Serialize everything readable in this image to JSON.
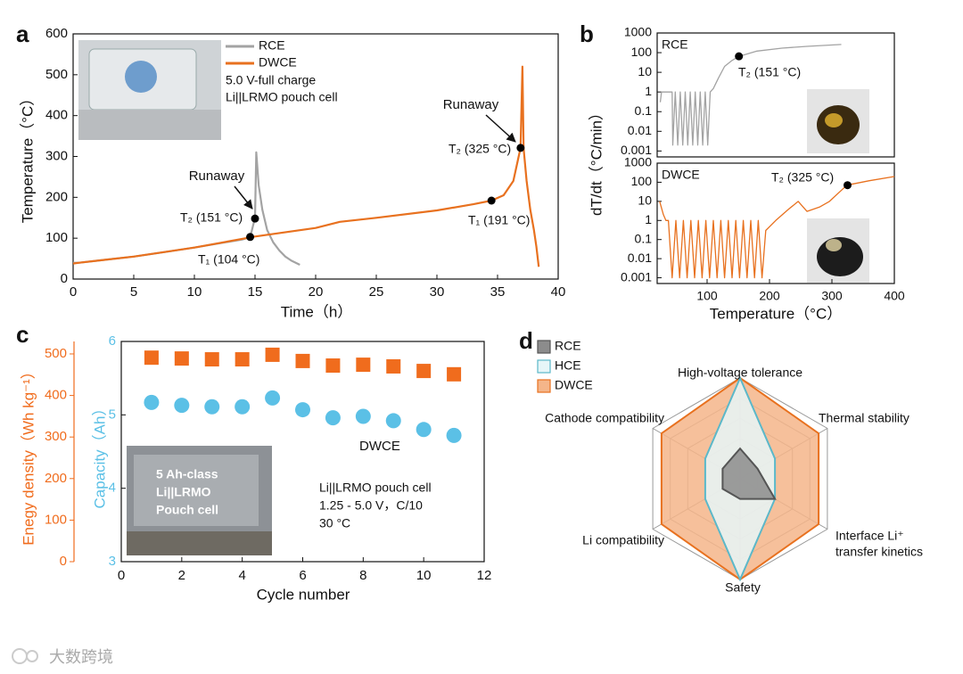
{
  "chart_data": [
    {
      "type": "line",
      "panel": "a",
      "xlabel": "Time（h）",
      "ylabel": "Temperature（°C）",
      "xlim": [
        0,
        40
      ],
      "ylim": [
        0,
        600
      ],
      "xticks": [
        0,
        5,
        10,
        15,
        20,
        25,
        30,
        35,
        40
      ],
      "yticks": [
        0,
        100,
        200,
        300,
        400,
        500,
        600
      ],
      "legend": true,
      "legend_notes": [
        "5.0 V-full charge",
        "Li||LRMO pouch cell"
      ],
      "series": [
        {
          "name": "RCE",
          "color": "#a3a3a3",
          "x": [
            0,
            0.5,
            2,
            5,
            8,
            10,
            12,
            14,
            14.6,
            15.0,
            15.1,
            15.3,
            15.6,
            16,
            16.5,
            17,
            17.5,
            18,
            18.7
          ],
          "values": [
            40,
            40,
            45,
            55,
            68,
            77,
            87,
            97,
            103,
            150,
            310,
            230,
            170,
            120,
            90,
            70,
            55,
            45,
            35
          ]
        },
        {
          "name": "DWCE",
          "color": "#e8711f",
          "x": [
            0,
            0.5,
            2,
            5,
            10,
            15,
            20,
            22,
            25,
            30,
            33,
            34.5,
            35.5,
            36.3,
            36.9,
            37.05,
            37.15,
            37.4,
            37.7,
            38.0,
            38.2,
            38.4
          ],
          "values": [
            38,
            40,
            45,
            55,
            77,
            104,
            125,
            140,
            150,
            168,
            183,
            192,
            205,
            240,
            321,
            520,
            320,
            240,
            170,
            120,
            80,
            30
          ]
        }
      ],
      "points": [
        {
          "x": 14.6,
          "y": 103,
          "label": "T₁ (104 °C)"
        },
        {
          "x": 15.0,
          "y": 148,
          "label": "T₂ (151 °C)"
        },
        {
          "x": 34.5,
          "y": 192,
          "label": "T₁ (191 °C)"
        },
        {
          "x": 36.9,
          "y": 321,
          "label": "T₂ (325 °C)"
        }
      ],
      "annotations": [
        "Runaway",
        "Runaway"
      ]
    },
    {
      "type": "line",
      "panel": "b",
      "ylabel": "dT/dt（°C/min）",
      "log_y": true,
      "xlim": [
        20,
        400
      ],
      "ylim": [
        0.0005,
        1000
      ],
      "yticks": [
        0.001,
        0.01,
        0.1,
        1,
        10,
        100,
        1000
      ],
      "series": [
        {
          "name": "RCE",
          "color": "#a3a3a3",
          "x": [
            25,
            27,
            30,
            40,
            44,
            45,
            49,
            53,
            57,
            61,
            65,
            69,
            73,
            77,
            81,
            85,
            89,
            93,
            97,
            101,
            105,
            110,
            118,
            128,
            140,
            151,
            180,
            220,
            260,
            315
          ],
          "values": [
            0.3,
            1,
            1,
            1,
            1,
            0.002,
            1,
            0.002,
            1,
            0.002,
            1,
            0.002,
            1,
            0.002,
            1,
            0.002,
            1,
            0.002,
            1,
            0.002,
            1,
            1.5,
            5,
            20,
            40,
            65,
            120,
            170,
            210,
            260
          ]
        }
      ],
      "points": [
        {
          "x": 151,
          "y": 65,
          "label": "T₂ (151 °C)"
        }
      ]
    },
    {
      "type": "line",
      "xlabel": "Temperature（°C）",
      "log_y": true,
      "xlim": [
        20,
        400
      ],
      "ylim": [
        0.0005,
        1000
      ],
      "xticks": [
        100,
        200,
        300,
        400
      ],
      "yticks": [
        0.001,
        0.01,
        0.1,
        1,
        10,
        100,
        1000
      ],
      "series": [
        {
          "name": "DWCE",
          "color": "#e8711f",
          "x": [
            24,
            30,
            34,
            38,
            44,
            50,
            56,
            62,
            68,
            74,
            80,
            86,
            92,
            98,
            104,
            110,
            116,
            122,
            128,
            134,
            140,
            146,
            152,
            158,
            164,
            170,
            176,
            182,
            188,
            194,
            210,
            231,
            246,
            260,
            280,
            296,
            324,
            360,
            400
          ],
          "values": [
            10,
            2,
            1,
            1,
            0.001,
            1,
            0.001,
            1,
            0.001,
            1,
            0.001,
            1,
            0.001,
            1,
            0.001,
            1,
            0.001,
            1,
            0.001,
            1,
            0.001,
            1,
            0.001,
            1,
            0.001,
            1,
            0.001,
            1,
            0.001,
            0.3,
            1,
            4,
            10,
            3,
            5,
            10,
            70,
            120,
            200
          ]
        }
      ],
      "points": [
        {
          "x": 325,
          "y": 70,
          "label": "T₂ (325 °C)"
        }
      ]
    },
    {
      "type": "scatter",
      "panel": "c",
      "xlabel": "Cycle number",
      "ylabel": "Enegy density（Wh kg⁻¹）",
      "y2label": "Capacity（Ah）",
      "xlim": [
        0,
        12
      ],
      "xticks": [
        0,
        2,
        4,
        6,
        8,
        10,
        12
      ],
      "ylim": [
        0,
        530
      ],
      "yticks": [
        0,
        100,
        200,
        300,
        400,
        500
      ],
      "y2lim": [
        3,
        6
      ],
      "y2ticks": [
        3,
        4,
        5,
        6
      ],
      "x": [
        1,
        2,
        3,
        4,
        5,
        6,
        7,
        8,
        9,
        10,
        11
      ],
      "series": [
        {
          "color": "#f06c1d",
          "marker": "square",
          "values": [
            491,
            489,
            487,
            487,
            498,
            483,
            472,
            474,
            470,
            459,
            451
          ]
        },
        {
          "color": "#5bc0e6",
          "marker": "circle",
          "axis": "y2",
          "values": [
            5.17,
            5.13,
            5.11,
            5.11,
            5.23,
            5.07,
            4.96,
            4.98,
            4.92,
            4.8,
            4.72
          ]
        }
      ],
      "annotations": [
        "DWCE",
        "Li||LRMO pouch cell",
        "1.25 - 5.0 V，C/10",
        "30 °C"
      ],
      "inset_text": [
        "5 Ah-class",
        "Li||LRMO",
        "Pouch cell"
      ]
    },
    {
      "type": "radar",
      "panel": "d",
      "rlim": [
        0,
        5
      ],
      "rticks": [
        1,
        2,
        3,
        4,
        5
      ],
      "categories": [
        "High-voltage tolerance",
        "Thermal stability",
        [
          "Interface Li⁺",
          "transfer kinetics"
        ],
        "Safety",
        "Li compatibility",
        "Cathode compatibility"
      ],
      "series": [
        {
          "name": "RCE",
          "color": "#555555",
          "fill": "#8c8c8c",
          "values": [
            1.5,
            1,
            2,
            1,
            1,
            1
          ]
        },
        {
          "name": "HCE",
          "color": "#5bb8c9",
          "fill": "#e6f6f8",
          "values": [
            5,
            2,
            2,
            5,
            2,
            2
          ]
        },
        {
          "name": "DWCE",
          "color": "#e8711f",
          "fill": "#f4b58a",
          "values": [
            5,
            4.5,
            4.5,
            5,
            4.5,
            4.5
          ]
        }
      ]
    }
  ],
  "watermark": "大数跨境"
}
